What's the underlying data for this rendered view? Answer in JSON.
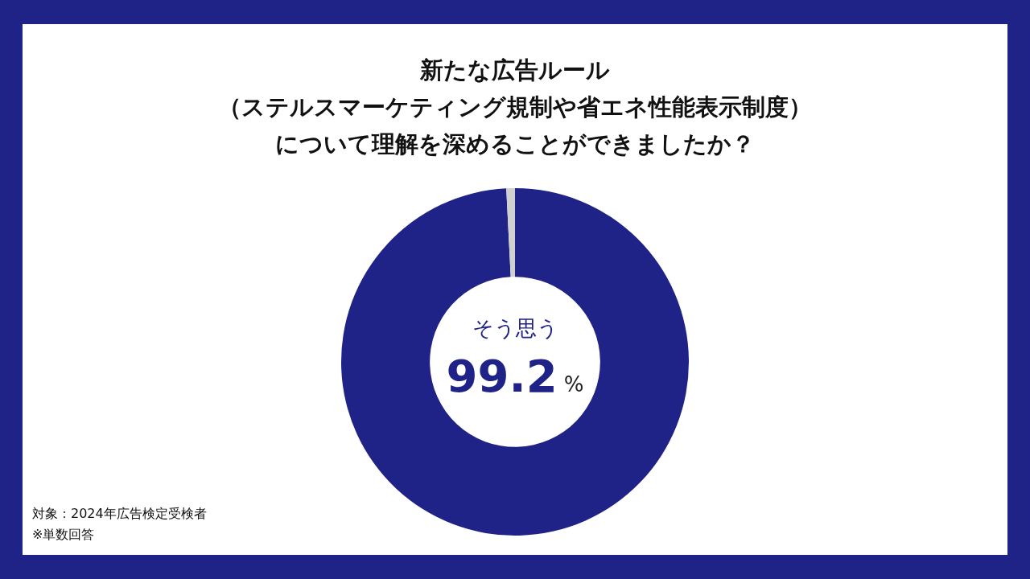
{
  "chart_data": {
    "type": "donut",
    "title": "新たな広告ルール（ステルスマーケティング規制や省エネ性能表示制度）について理解を深めることができましたか？",
    "categories": [
      "そう思う",
      null
    ],
    "values": [
      99.2,
      0.8
    ],
    "colors": [
      "#1f2287",
      "#d0d0d0"
    ],
    "value_labels": [
      "99.2%",
      null
    ],
    "legend": false,
    "annotations": [
      "対象：2024年広告検定受検者",
      "※単数回答"
    ]
  }
}
